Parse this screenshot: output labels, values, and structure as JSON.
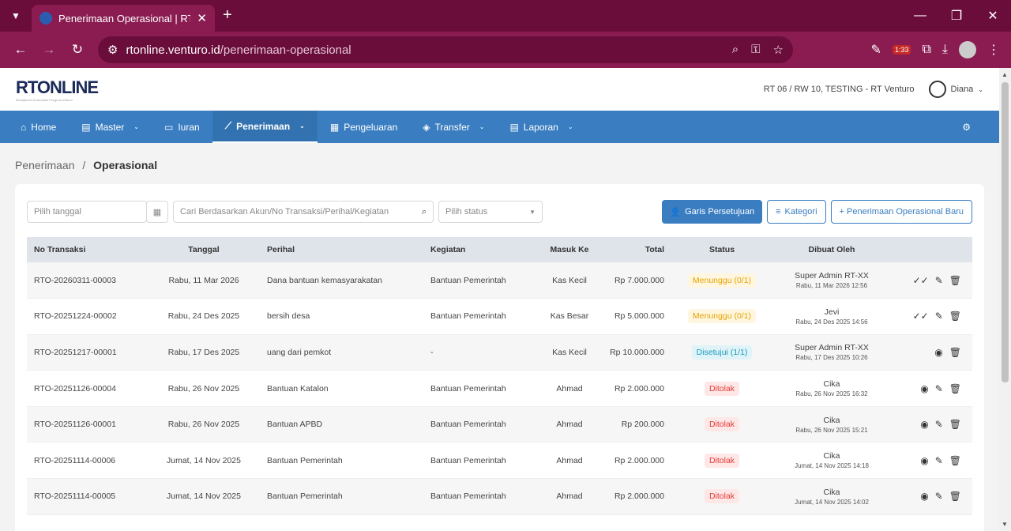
{
  "browser": {
    "tab_title": "Penerimaan Operasional | RT O",
    "url_host": "rtonline.venturo.id",
    "url_path": "/penerimaan-operasional",
    "ext_badge": "1:33"
  },
  "header": {
    "logo": "RTONLINE",
    "logo_sub": "Manajemen Komunitas Pengurus Rukun",
    "location": "RT 06 / RW 10, TESTING - RT Venturo",
    "user": "Diana"
  },
  "menu": {
    "items": [
      "Home",
      "Master",
      "Iuran",
      "Penerimaan",
      "Pengeluaran",
      "Transfer",
      "Laporan"
    ]
  },
  "breadcrumb": {
    "parent": "Penerimaan",
    "current": "Operasional"
  },
  "filters": {
    "date_placeholder": "Pilih tanggal",
    "search_placeholder": "Cari Berdasarkan Akun/No Transaksi/Perihal/Kegiatan",
    "status_placeholder": "Pilih status",
    "btn_approval": "Garis Persetujuan",
    "btn_category": "Kategori",
    "btn_new": "+ Penerimaan Operasional Baru"
  },
  "table": {
    "headers": [
      "No Transaksi",
      "Tanggal",
      "Perihal",
      "Kegiatan",
      "Masuk Ke",
      "Total",
      "Status",
      "Dibuat Oleh"
    ],
    "rows": [
      {
        "no": "RTO-20260311-00003",
        "tgl": "Rabu, 11 Mar 2026",
        "perihal": "Dana bantuan kemasyarakatan",
        "kegiatan": "Bantuan Pemerintah",
        "masuk": "Kas Kecil",
        "total": "Rp 7.000.000",
        "status": "Menunggu (0/1)",
        "by": "Super Admin RT-XX",
        "at": "Rabu, 11 Mar 2026 12:56"
      },
      {
        "no": "RTO-20251224-00002",
        "tgl": "Rabu, 24 Des 2025",
        "perihal": "bersih desa",
        "kegiatan": "Bantuan Pemerintah",
        "masuk": "Kas Besar",
        "total": "Rp 5.000.000",
        "status": "Menunggu (0/1)",
        "by": "Jevi",
        "at": "Rabu, 24 Des 2025 14:56"
      },
      {
        "no": "RTO-20251217-00001",
        "tgl": "Rabu, 17 Des 2025",
        "perihal": "uang dari pemkot",
        "kegiatan": "-",
        "masuk": "Kas Kecil",
        "total": "Rp 10.000.000",
        "status": "Disetujui (1/1)",
        "by": "Super Admin RT-XX",
        "at": "Rabu, 17 Des 2025 10:26"
      },
      {
        "no": "RTO-20251126-00004",
        "tgl": "Rabu, 26 Nov 2025",
        "perihal": "Bantuan Katalon",
        "kegiatan": "Bantuan Pemerintah",
        "masuk": "Ahmad",
        "total": "Rp 2.000.000",
        "status": "Ditolak",
        "by": "Cika",
        "at": "Rabu, 26 Nov 2025 16:32"
      },
      {
        "no": "RTO-20251126-00001",
        "tgl": "Rabu, 26 Nov 2025",
        "perihal": "Bantuan APBD",
        "kegiatan": "Bantuan Pemerintah",
        "masuk": "Ahmad",
        "total": "Rp 200.000",
        "status": "Ditolak",
        "by": "Cika",
        "at": "Rabu, 26 Nov 2025 15:21"
      },
      {
        "no": "RTO-20251114-00006",
        "tgl": "Jumat, 14 Nov 2025",
        "perihal": "Bantuan Pemerintah",
        "kegiatan": "Bantuan Pemerintah",
        "masuk": "Ahmad",
        "total": "Rp 2.000.000",
        "status": "Ditolak",
        "by": "Cika",
        "at": "Jumat, 14 Nov 2025 14:18"
      },
      {
        "no": "RTO-20251114-00005",
        "tgl": "Jumat, 14 Nov 2025",
        "perihal": "Bantuan Pemerintah",
        "kegiatan": "Bantuan Pemerintah",
        "masuk": "Ahmad",
        "total": "Rp 2.000.000",
        "status": "Ditolak",
        "by": "Cika",
        "at": "Jumat, 14 Nov 2025 14:02"
      }
    ]
  }
}
